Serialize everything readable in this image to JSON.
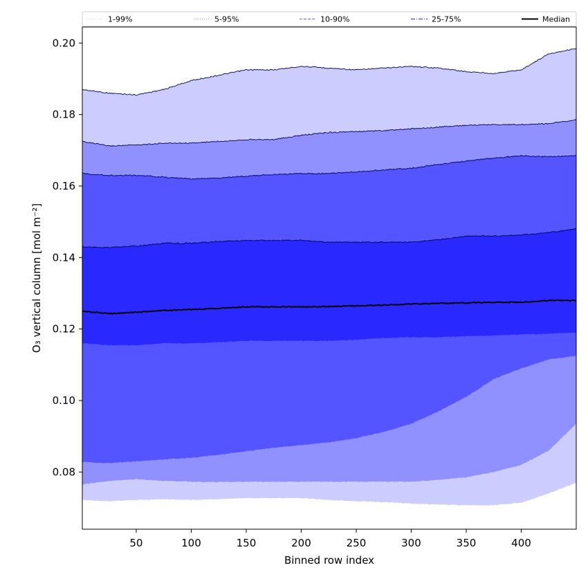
{
  "chart_data": {
    "type": "area",
    "title": "",
    "xlabel": "Binned row index",
    "ylabel": "O₃ vertical column [mol m⁻²]",
    "xlim": [
      1,
      450
    ],
    "ylim": [
      0.064,
      0.2045
    ],
    "xticks": [
      50,
      100,
      150,
      200,
      250,
      300,
      350,
      400
    ],
    "yticks": [
      0.08,
      0.1,
      0.12,
      0.14,
      0.16,
      0.18,
      0.2
    ],
    "ytick_labels": [
      "0.08",
      "0.10",
      "0.12",
      "0.14",
      "0.16",
      "0.18",
      "0.20"
    ],
    "legend_position": "top",
    "x": [
      1,
      25,
      50,
      75,
      100,
      125,
      150,
      175,
      200,
      225,
      250,
      275,
      300,
      325,
      350,
      375,
      400,
      425,
      450
    ],
    "bands": [
      {
        "name": "1-99%",
        "fill_color": "#ccccff",
        "line_color": "#ccccff",
        "line_style": "dotted",
        "lower": [
          0.0722,
          0.0718,
          0.0722,
          0.0724,
          0.0722,
          0.0724,
          0.0727,
          0.0727,
          0.0727,
          0.0722,
          0.0718,
          0.0716,
          0.0712,
          0.0709,
          0.0707,
          0.0707,
          0.0714,
          0.074,
          0.077
        ],
        "upper": [
          0.187,
          0.186,
          0.1855,
          0.187,
          0.1895,
          0.191,
          0.1925,
          0.1925,
          0.1935,
          0.193,
          0.1925,
          0.193,
          0.1935,
          0.193,
          0.192,
          0.1915,
          0.1925,
          0.197,
          0.1985
        ]
      },
      {
        "name": "5-95%",
        "fill_color": "#9090ff",
        "line_color": "#9090ff",
        "line_style": "dotted",
        "lower": [
          0.0765,
          0.0775,
          0.078,
          0.0775,
          0.0773,
          0.0772,
          0.0773,
          0.0773,
          0.0773,
          0.0773,
          0.0773,
          0.0773,
          0.0773,
          0.0778,
          0.0785,
          0.08,
          0.082,
          0.086,
          0.0935
        ],
        "upper": [
          0.1725,
          0.1712,
          0.1715,
          0.172,
          0.172,
          0.1725,
          0.173,
          0.173,
          0.1742,
          0.175,
          0.1752,
          0.1755,
          0.176,
          0.1765,
          0.177,
          0.1772,
          0.1772,
          0.1775,
          0.1785
        ]
      },
      {
        "name": "10-90%",
        "fill_color": "#5555ff",
        "line_color": "#7878ff",
        "line_style": "dashed",
        "lower": [
          0.0828,
          0.0825,
          0.083,
          0.0835,
          0.084,
          0.0848,
          0.0858,
          0.0868,
          0.0875,
          0.0883,
          0.0895,
          0.0912,
          0.0935,
          0.097,
          0.101,
          0.106,
          0.109,
          0.1115,
          0.1125
        ],
        "upper": [
          0.1635,
          0.163,
          0.163,
          0.1625,
          0.162,
          0.1622,
          0.1628,
          0.1632,
          0.1635,
          0.1635,
          0.164,
          0.1645,
          0.165,
          0.166,
          0.167,
          0.1678,
          0.1685,
          0.1682,
          0.1685
        ]
      },
      {
        "name": "25-75%",
        "fill_color": "#2929ff",
        "line_color": "#4545ee",
        "line_style": "dashdot",
        "lower": [
          0.116,
          0.1155,
          0.1155,
          0.116,
          0.116,
          0.1163,
          0.1167,
          0.1167,
          0.1167,
          0.1167,
          0.117,
          0.1175,
          0.1177,
          0.1177,
          0.118,
          0.1182,
          0.1185,
          0.1187,
          0.119
        ],
        "upper": [
          0.143,
          0.1428,
          0.1432,
          0.144,
          0.144,
          0.1445,
          0.1448,
          0.1448,
          0.1448,
          0.1443,
          0.1443,
          0.1443,
          0.1443,
          0.145,
          0.146,
          0.146,
          0.1463,
          0.147,
          0.148
        ]
      }
    ],
    "series": [
      {
        "name": "Median",
        "color": "#000000",
        "values": [
          0.125,
          0.1243,
          0.1247,
          0.1252,
          0.1255,
          0.1258,
          0.1262,
          0.1262,
          0.1262,
          0.1263,
          0.1265,
          0.1267,
          0.127,
          0.1272,
          0.1273,
          0.1275,
          0.1275,
          0.128,
          0.128
        ]
      }
    ],
    "legend": [
      "1-99%",
      "5-95%",
      "10-90%",
      "25-75%",
      "Median"
    ]
  }
}
